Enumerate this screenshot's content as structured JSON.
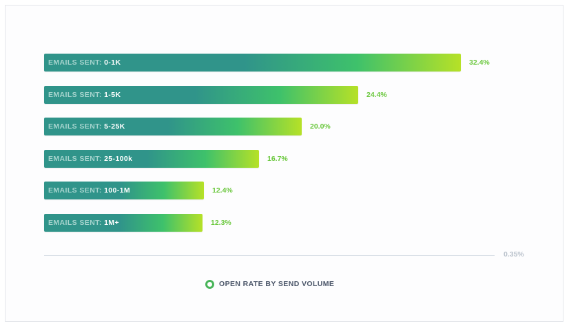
{
  "chart_data": {
    "type": "bar",
    "orientation": "horizontal",
    "category_prefix": "EMAILS SENT:",
    "categories": [
      "0-1K",
      "1-5K",
      "5-25K",
      "25-100k",
      "100-1M",
      "1M+"
    ],
    "values": [
      32.4,
      24.4,
      20.0,
      16.7,
      12.4,
      12.3
    ],
    "value_labels": [
      "32.4%",
      "24.4%",
      "20.0%",
      "16.7%",
      "12.4%",
      "12.3%"
    ],
    "series": [
      {
        "name": "OPEN RATE BY SEND VOLUME",
        "values": [
          32.4,
          24.4,
          20.0,
          16.7,
          12.4,
          12.3
        ]
      }
    ],
    "axis_max_label": "0.35%",
    "xlim": [
      0,
      35
    ],
    "legend": {
      "label": "OPEN RATE BY SEND VOLUME",
      "placement": "bottom"
    },
    "grid": false,
    "colors": {
      "bar_start": "#30948a",
      "bar_end": "#b6e127",
      "value_label": "#6cc83f",
      "legend_ring": "#49b55a"
    }
  }
}
